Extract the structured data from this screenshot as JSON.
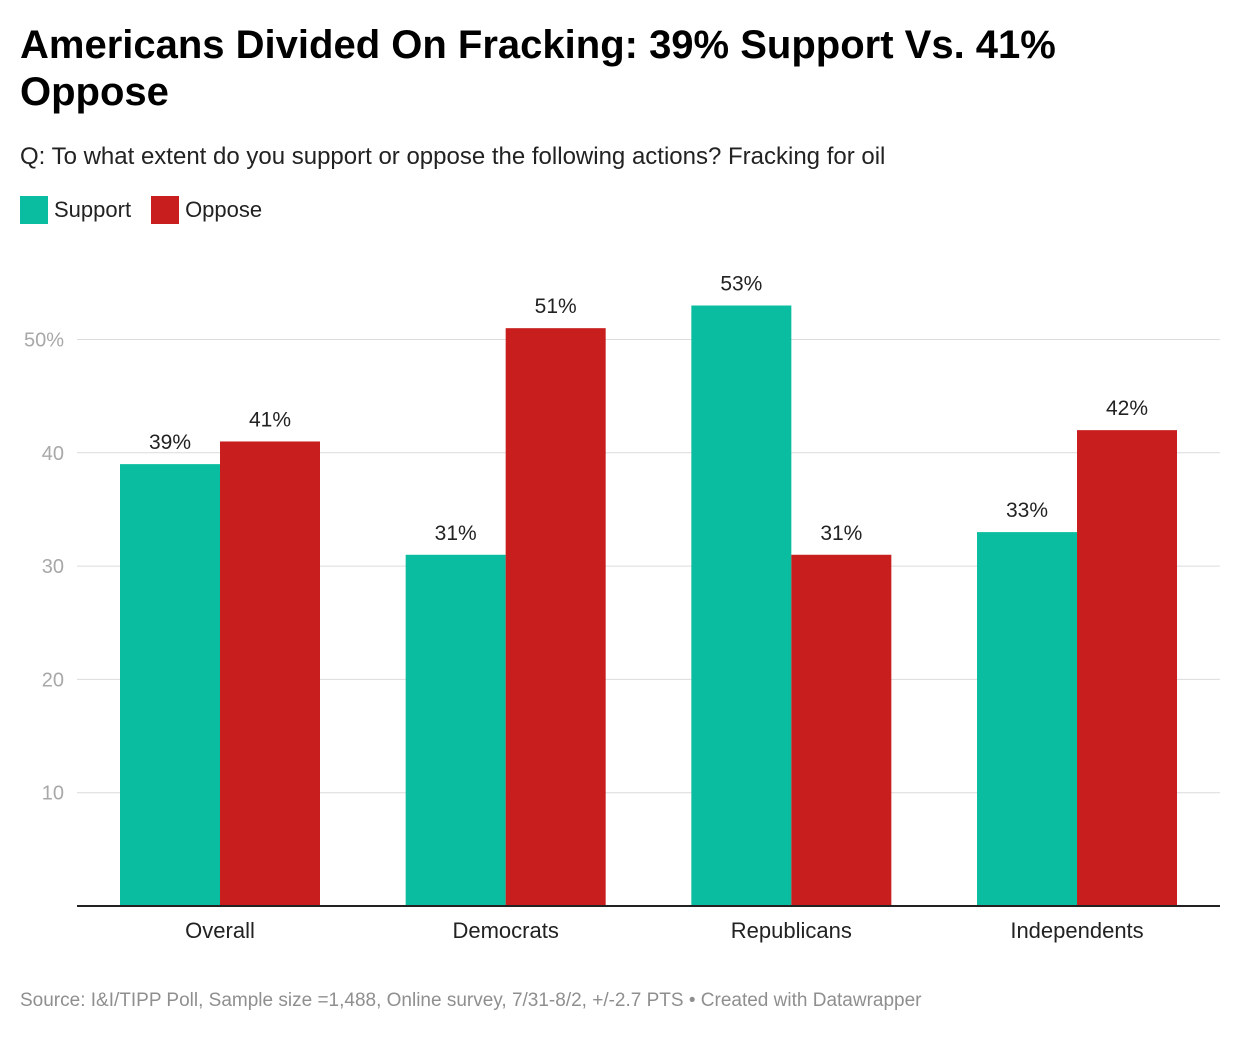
{
  "title": "Americans Divided On Fracking: 39% Support Vs. 41% Oppose",
  "subtitle": "Q: To what extent do you support or oppose the following actions? Fracking for oil",
  "footer": "Source: I&I/TIPP Poll, Sample size =1,488, Online survey, 7/31-8/2, +/-2.7 PTS • Created with Datawrapper",
  "colors": {
    "support": "#0abda0",
    "oppose": "#c81e1e",
    "grid": "#dcdcdc",
    "axis": "#222222",
    "tick": "#a8a8a8"
  },
  "chart_data": {
    "type": "bar",
    "title": "Americans Divided On Fracking: 39% Support Vs. 41% Oppose",
    "categories": [
      "Overall",
      "Democrats",
      "Republicans",
      "Independents"
    ],
    "series": [
      {
        "name": "Support",
        "values": [
          39,
          31,
          53,
          33
        ],
        "labels": [
          "39%",
          "31%",
          "53%",
          "33%"
        ]
      },
      {
        "name": "Oppose",
        "values": [
          41,
          51,
          31,
          42
        ],
        "labels": [
          "41%",
          "51%",
          "31%",
          "42%"
        ]
      }
    ],
    "yticks": [
      10,
      20,
      30,
      40,
      50
    ],
    "ytick_labels": [
      "10",
      "20",
      "30",
      "40",
      "50%"
    ],
    "ylim": [
      0,
      57
    ],
    "xlabel": "",
    "ylabel": "",
    "legend": "top-left",
    "grid": true
  }
}
